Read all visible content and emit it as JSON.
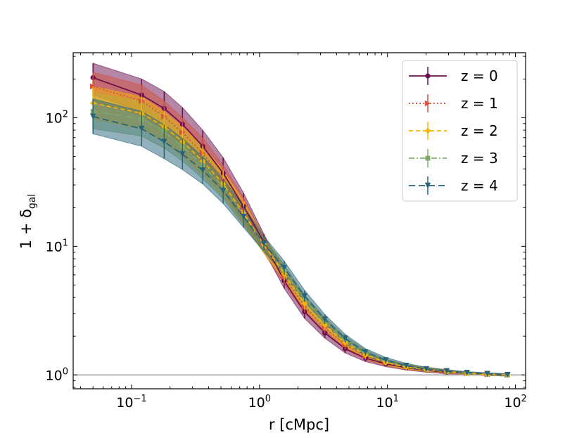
{
  "chart_data": {
    "type": "line",
    "xscale": "log",
    "yscale": "log",
    "xlim": [
      0.035,
      120
    ],
    "ylim": [
      0.78,
      320
    ],
    "xlabel": "r [cMpc]",
    "ylabel_main": "1 + δ",
    "ylabel_sub": "gal",
    "xticks": [
      {
        "value": 0.1,
        "base": "10",
        "exp": "−1"
      },
      {
        "value": 1,
        "base": "10",
        "exp": "0"
      },
      {
        "value": 10,
        "base": "10",
        "exp": "1"
      },
      {
        "value": 100,
        "base": "10",
        "exp": "2"
      }
    ],
    "yticks": [
      {
        "value": 1,
        "base": "10",
        "exp": "0"
      },
      {
        "value": 10,
        "base": "10",
        "exp": "1"
      },
      {
        "value": 100,
        "base": "10",
        "exp": "2"
      }
    ],
    "reference_line": 1,
    "legend_position": "upper-right",
    "x": [
      0.05,
      0.12,
      0.18,
      0.25,
      0.36,
      0.52,
      0.75,
      1.08,
      1.56,
      2.25,
      3.24,
      4.67,
      6.73,
      9.7,
      14.0,
      20.1,
      29.0,
      41.8,
      60.3,
      86.8
    ],
    "series": [
      {
        "name": "z = 0",
        "color": "#6b0f4f",
        "dash": "",
        "marker": "circle",
        "values": [
          205,
          150,
          118,
          89,
          60,
          37,
          20.5,
          10.8,
          5.4,
          3.1,
          2.12,
          1.6,
          1.35,
          1.22,
          1.14,
          1.09,
          1.05,
          1.03,
          1.01,
          1.0
        ],
        "lower": [
          150,
          112,
          90,
          68,
          46,
          28.5,
          16.5,
          9.3,
          4.7,
          2.75,
          1.93,
          1.48,
          1.27,
          1.16,
          1.09,
          1.05,
          1.02,
          1.01,
          0.99,
          0.98
        ],
        "upper": [
          265,
          200,
          160,
          120,
          80,
          49,
          26,
          12.5,
          6.2,
          3.5,
          2.35,
          1.75,
          1.45,
          1.29,
          1.2,
          1.13,
          1.08,
          1.05,
          1.03,
          1.02
        ]
      },
      {
        "name": "z = 1",
        "color": "#d6513f",
        "dash": "2,3",
        "marker": "tri-right",
        "values": [
          175,
          135,
          102,
          77,
          53,
          33,
          19,
          10.3,
          5.8,
          3.4,
          2.32,
          1.72,
          1.4,
          1.24,
          1.15,
          1.1,
          1.06,
          1.03,
          1.01,
          1.0
        ],
        "lower": [
          135,
          104,
          80,
          61,
          42,
          26.5,
          15.5,
          8.9,
          5.1,
          3.05,
          2.1,
          1.58,
          1.31,
          1.18,
          1.1,
          1.06,
          1.03,
          1.01,
          0.99,
          0.98
        ],
        "upper": [
          225,
          180,
          135,
          100,
          70,
          43,
          24,
          12,
          6.6,
          3.85,
          2.6,
          1.88,
          1.5,
          1.31,
          1.2,
          1.14,
          1.09,
          1.05,
          1.03,
          1.02
        ]
      },
      {
        "name": "z = 3",
        "color": "#7faa6a",
        "dash": "8,3,2,3",
        "marker": "square",
        "values": [
          112,
          98,
          78,
          60,
          43,
          29,
          17.5,
          10.2,
          6.4,
          3.8,
          2.55,
          1.85,
          1.46,
          1.27,
          1.16,
          1.1,
          1.06,
          1.03,
          1.01,
          1.0
        ],
        "lower": [
          82,
          72,
          58,
          46,
          33.5,
          23.5,
          14.5,
          8.9,
          5.7,
          3.45,
          2.35,
          1.72,
          1.38,
          1.21,
          1.12,
          1.07,
          1.04,
          1.02,
          0.99,
          0.98
        ],
        "upper": [
          155,
          135,
          105,
          80,
          56,
          36,
          21,
          11.7,
          7.2,
          4.2,
          2.8,
          2.0,
          1.56,
          1.33,
          1.21,
          1.14,
          1.09,
          1.05,
          1.03,
          1.02
        ]
      },
      {
        "name": "z = 2",
        "color": "#f7b500",
        "dash": "6,4",
        "marker": "diamond",
        "values": [
          130,
          108,
          85,
          65,
          46,
          30.5,
          18.2,
          10.3,
          6.1,
          3.6,
          2.45,
          1.78,
          1.43,
          1.25,
          1.15,
          1.1,
          1.06,
          1.03,
          1.01,
          1.0
        ],
        "lower": [
          98,
          82,
          65,
          50,
          36,
          24.5,
          15,
          9.0,
          5.4,
          3.25,
          2.25,
          1.65,
          1.34,
          1.19,
          1.11,
          1.07,
          1.03,
          1.01,
          0.99,
          0.98
        ],
        "upper": [
          175,
          145,
          112,
          85,
          60,
          39,
          22.5,
          11.8,
          6.9,
          4.0,
          2.7,
          1.93,
          1.52,
          1.31,
          1.2,
          1.14,
          1.09,
          1.05,
          1.03,
          1.02
        ]
      },
      {
        "name": "z = 4",
        "color": "#27637a",
        "dash": "9,5",
        "marker": "tri-down",
        "values": [
          102,
          82,
          65,
          52,
          39,
          27,
          17,
          10.5,
          6.8,
          4.1,
          2.7,
          1.92,
          1.5,
          1.3,
          1.18,
          1.11,
          1.07,
          1.04,
          1.02,
          1.0
        ],
        "lower": [
          75,
          60,
          48,
          39.5,
          30.5,
          21.5,
          14,
          9.2,
          6.0,
          3.7,
          2.48,
          1.78,
          1.41,
          1.23,
          1.13,
          1.08,
          1.04,
          1.02,
          1.0,
          0.98
        ],
        "upper": [
          140,
          112,
          88,
          69,
          50,
          33.5,
          20.5,
          12,
          7.7,
          4.55,
          2.95,
          2.07,
          1.6,
          1.37,
          1.23,
          1.15,
          1.1,
          1.06,
          1.04,
          1.02
        ]
      }
    ],
    "legend_order": [
      "z = 0",
      "z = 1",
      "z = 2",
      "z = 3",
      "z = 4"
    ]
  }
}
